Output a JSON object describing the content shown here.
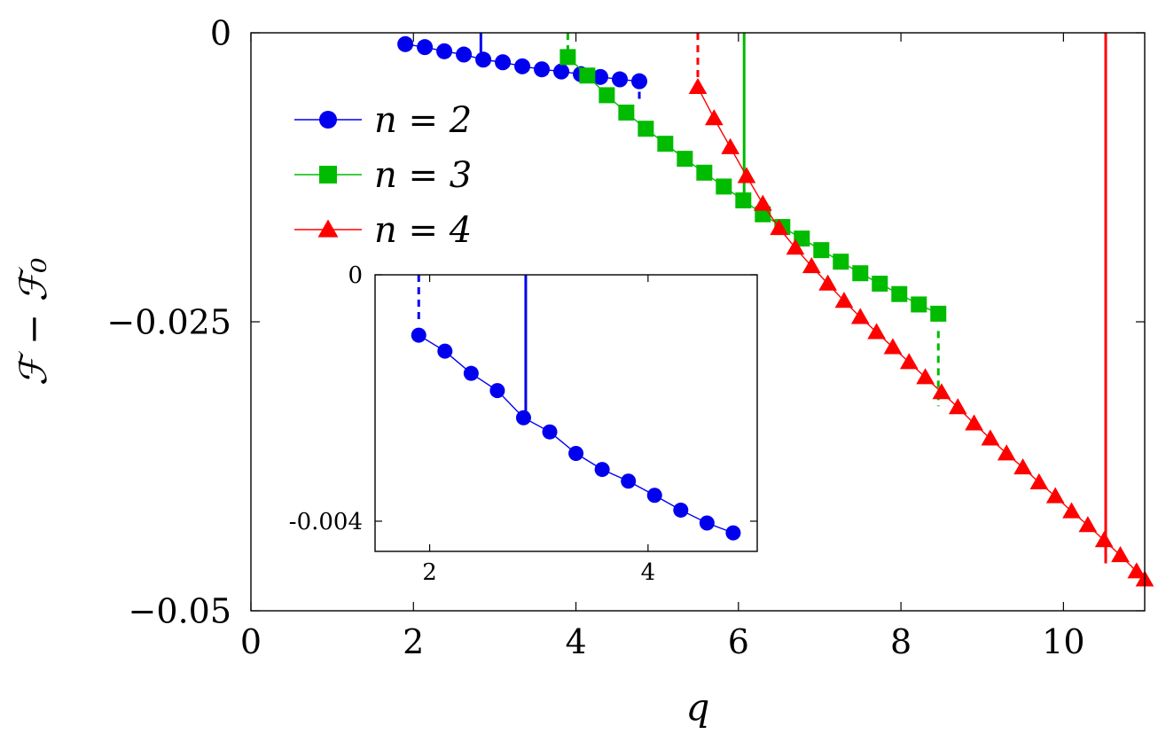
{
  "chart_data": [
    {
      "type": "line",
      "role": "main",
      "xlabel": "q",
      "ylabel": "ℱ − ℱ₀",
      "xlim": [
        0,
        11
      ],
      "ylim": [
        -0.05,
        0
      ],
      "xticks": [
        0,
        2,
        4,
        6,
        8,
        10
      ],
      "xtick_labels": [
        "0",
        "2",
        "4",
        "6",
        "8",
        "10"
      ],
      "yticks": [
        0,
        -0.025,
        -0.05
      ],
      "ytick_labels": [
        "0",
        "−0.025",
        "−0.05"
      ],
      "legend_position": "upper-left",
      "grid": false,
      "series": [
        {
          "name": "n = 2",
          "color": "#0000ee",
          "marker": "circle",
          "x": [
            1.9,
            2.14,
            2.38,
            2.62,
            2.86,
            3.1,
            3.34,
            3.58,
            3.82,
            4.06,
            4.3,
            4.54,
            4.78
          ],
          "y": [
            -0.00098,
            -0.00124,
            -0.0016,
            -0.00188,
            -0.00232,
            -0.00255,
            -0.0029,
            -0.00316,
            -0.00335,
            -0.00358,
            -0.00382,
            -0.00403,
            -0.00419
          ]
        },
        {
          "name": "n = 3",
          "color": "#00bb00",
          "marker": "square",
          "x": [
            3.9,
            4.14,
            4.38,
            4.62,
            4.86,
            5.1,
            5.34,
            5.58,
            5.82,
            6.06,
            6.3,
            6.54,
            6.78,
            7.02,
            7.26,
            7.5,
            7.74,
            7.98,
            8.22,
            8.46
          ],
          "y": [
            -0.0021,
            -0.0037,
            -0.0054,
            -0.0069,
            -0.0083,
            -0.0096,
            -0.0109,
            -0.0121,
            -0.0133,
            -0.0145,
            -0.0157,
            -0.0168,
            -0.0178,
            -0.0188,
            -0.0198,
            -0.0208,
            -0.0217,
            -0.0226,
            -0.0235,
            -0.0243
          ]
        },
        {
          "name": "n = 4",
          "color": "#ff0000",
          "marker": "triangle",
          "x": [
            5.5,
            5.7,
            5.9,
            6.1,
            6.3,
            6.5,
            6.7,
            6.9,
            7.1,
            7.3,
            7.5,
            7.7,
            7.9,
            8.1,
            8.3,
            8.5,
            8.7,
            8.9,
            9.1,
            9.3,
            9.5,
            9.7,
            9.9,
            10.1,
            10.3,
            10.5,
            10.7,
            10.9,
            11.0
          ],
          "y": [
            -0.0047,
            -0.0074,
            -0.0099,
            -0.0124,
            -0.0148,
            -0.0169,
            -0.0186,
            -0.0202,
            -0.0217,
            -0.0232,
            -0.0246,
            -0.0259,
            -0.0272,
            -0.0285,
            -0.0298,
            -0.0311,
            -0.0324,
            -0.0338,
            -0.0351,
            -0.0364,
            -0.0376,
            -0.0389,
            -0.0401,
            -0.0414,
            -0.0426,
            -0.0439,
            -0.0452,
            -0.0466,
            -0.0473
          ]
        }
      ],
      "vlines": [
        {
          "x": 2.83,
          "y1": 0,
          "y2": -0.0017,
          "style": "solid",
          "color": "#0000ee"
        },
        {
          "x": 4.78,
          "y1": -0.0051,
          "y2": -0.0058,
          "style": "dashed",
          "color": "#0000ee"
        },
        {
          "x": 3.9,
          "y1": 0,
          "y2": -0.0016,
          "style": "dashed",
          "color": "#00bb00"
        },
        {
          "x": 8.46,
          "y1": -0.0258,
          "y2": -0.0323,
          "style": "dashed",
          "color": "#00bb00"
        },
        {
          "x": 6.07,
          "y1": 0,
          "y2": -0.0145,
          "style": "solid",
          "color": "#00bb00"
        },
        {
          "x": 5.5,
          "y1": 0,
          "y2": -0.0043,
          "style": "dashed",
          "color": "#ff0000"
        },
        {
          "x": 10.52,
          "y1": 0,
          "y2": -0.0459,
          "style": "solid",
          "color": "#ff0000"
        }
      ]
    },
    {
      "type": "line",
      "role": "inset",
      "xlim": [
        1.5,
        5.0
      ],
      "ylim": [
        -0.00449,
        0
      ],
      "xticks": [
        2,
        4
      ],
      "xtick_labels": [
        "2",
        "4"
      ],
      "yticks": [
        0,
        -0.004
      ],
      "ytick_labels": [
        "0",
        "-0.004"
      ],
      "series": [
        {
          "name": "n = 2",
          "color": "#0000ee",
          "marker": "circle",
          "x": [
            1.9,
            2.14,
            2.38,
            2.62,
            2.86,
            3.1,
            3.34,
            3.58,
            3.82,
            4.06,
            4.3,
            4.54,
            4.78
          ],
          "y": [
            -0.00098,
            -0.00124,
            -0.0016,
            -0.00188,
            -0.00232,
            -0.00255,
            -0.0029,
            -0.00316,
            -0.00335,
            -0.00358,
            -0.00382,
            -0.00403,
            -0.00419
          ]
        }
      ],
      "vlines": [
        {
          "x": 1.9,
          "y1": 0,
          "y2": -0.00073,
          "style": "dashed",
          "color": "#0000ee"
        },
        {
          "x": 2.88,
          "y1": 0,
          "y2": -0.00232,
          "style": "solid",
          "color": "#0000ee"
        }
      ]
    }
  ]
}
